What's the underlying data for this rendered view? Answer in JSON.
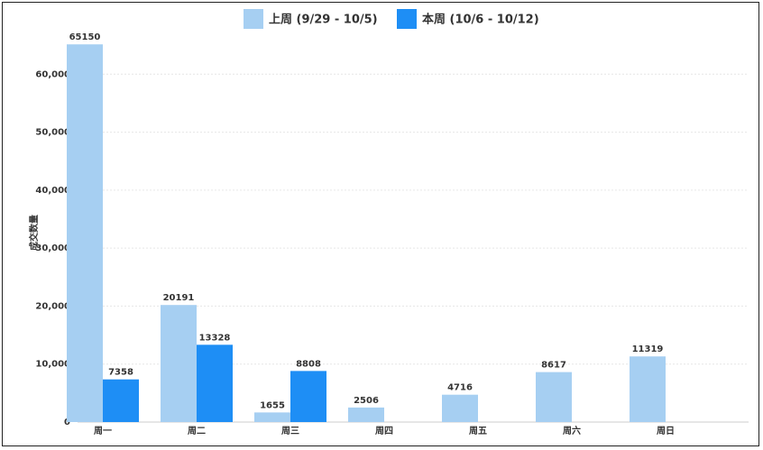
{
  "chart_data": {
    "type": "bar",
    "y_label": "成交数量",
    "categories": [
      "周一",
      "周二",
      "周三",
      "周四",
      "周五",
      "周六",
      "周日"
    ],
    "series": [
      {
        "name": "上周 (9/29 - 10/5)",
        "color": "#a6cff2",
        "values": [
          65150,
          20191,
          1655,
          2506,
          4716,
          8617,
          11319
        ]
      },
      {
        "name": "本周 (10/6 - 10/12)",
        "color": "#1e8ef5",
        "values": [
          7358,
          13328,
          8808,
          null,
          null,
          null,
          null
        ]
      }
    ],
    "ylim": [
      0,
      70000
    ],
    "yticks": [
      0,
      {
        "value": 10000,
        "label": "10,000"
      },
      {
        "value": 20000,
        "label": "20,000"
      },
      {
        "value": 30000,
        "label": "30,000"
      },
      {
        "value": 40000,
        "label": "40,000"
      },
      {
        "value": 50000,
        "label": "50,000"
      },
      {
        "value": 60000,
        "label": "60,000"
      }
    ],
    "grid": true
  }
}
